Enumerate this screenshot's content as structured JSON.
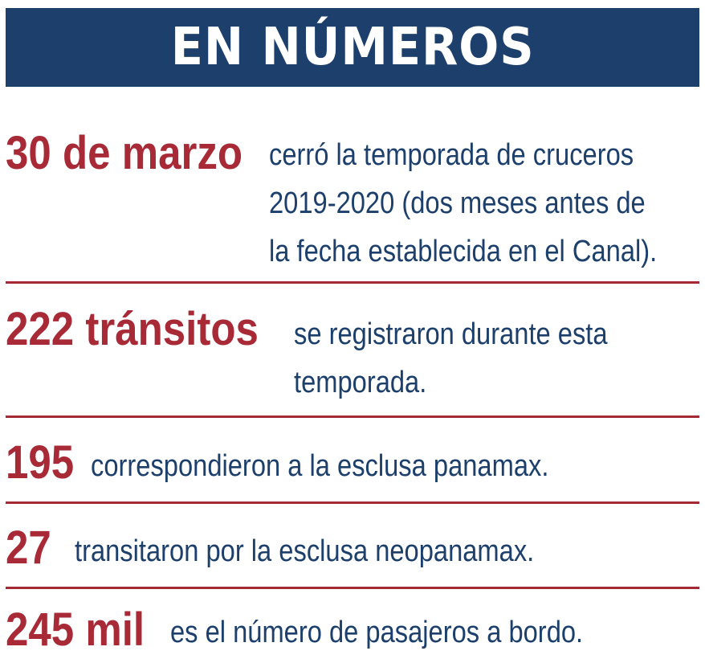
{
  "header": {
    "title": "EN NÚMEROS"
  },
  "facts": [
    {
      "figure": "30 de marzo",
      "lines": [
        "cerró la temporada de cruceros",
        "2019-2020 (dos meses antes de",
        "la fecha establecida en el Canal)."
      ]
    },
    {
      "figure": "222 tránsitos",
      "lines": [
        "se registraron durante esta",
        "temporada."
      ]
    },
    {
      "figure": "195",
      "lines": [
        "correspondieron a la esclusa panamax."
      ]
    },
    {
      "figure": "27",
      "lines": [
        "transitaron por la esclusa neopanamax."
      ]
    },
    {
      "figure": "245 mil",
      "lines": [
        "es el número de pasajeros a bordo."
      ]
    }
  ],
  "colors": {
    "header_bg": "#1c3f6b",
    "figure": "#a82a36",
    "text": "#1c3f6b",
    "divider": "#a32a35"
  }
}
